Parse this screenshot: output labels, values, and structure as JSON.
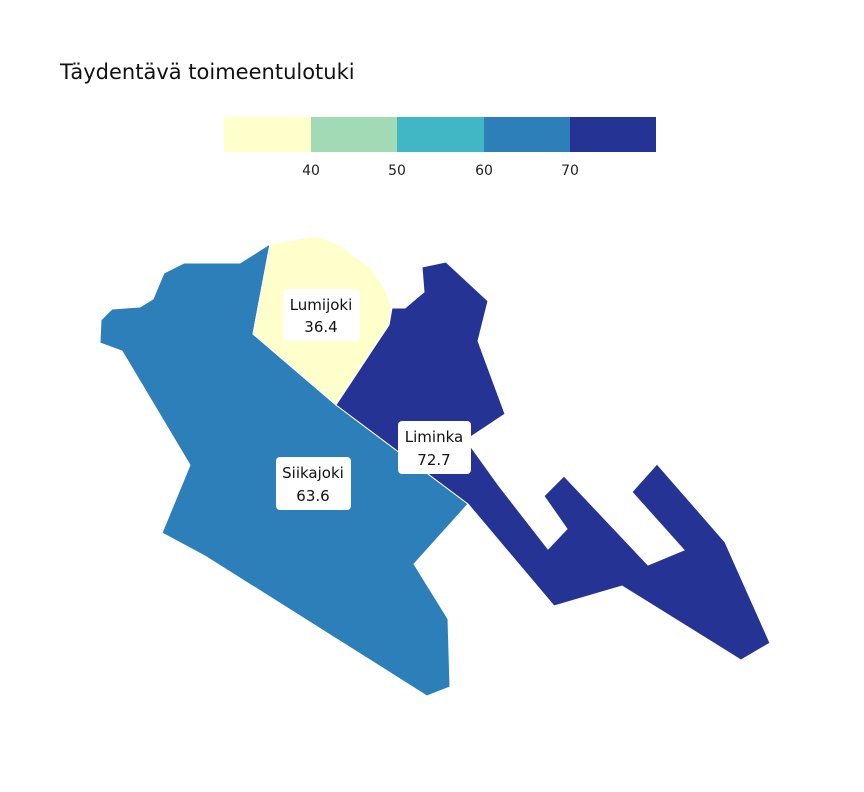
{
  "title": "Täydentävä toimeentulotuki",
  "legend": {
    "colors": [
      "#ffffcc",
      "#a1dab4",
      "#41b6c4",
      "#2c7fb8",
      "#253494"
    ],
    "ticks": [
      "40",
      "50",
      "60",
      "70"
    ]
  },
  "regions": {
    "lumijoki": {
      "name": "Lumijoki",
      "value": "36.4",
      "color": "#ffffcc"
    },
    "siikajoki": {
      "name": "Siikajoki",
      "value": "63.6",
      "color": "#2c7fb8"
    },
    "liminka": {
      "name": "Liminka",
      "value": "72.7",
      "color": "#253494"
    }
  }
}
